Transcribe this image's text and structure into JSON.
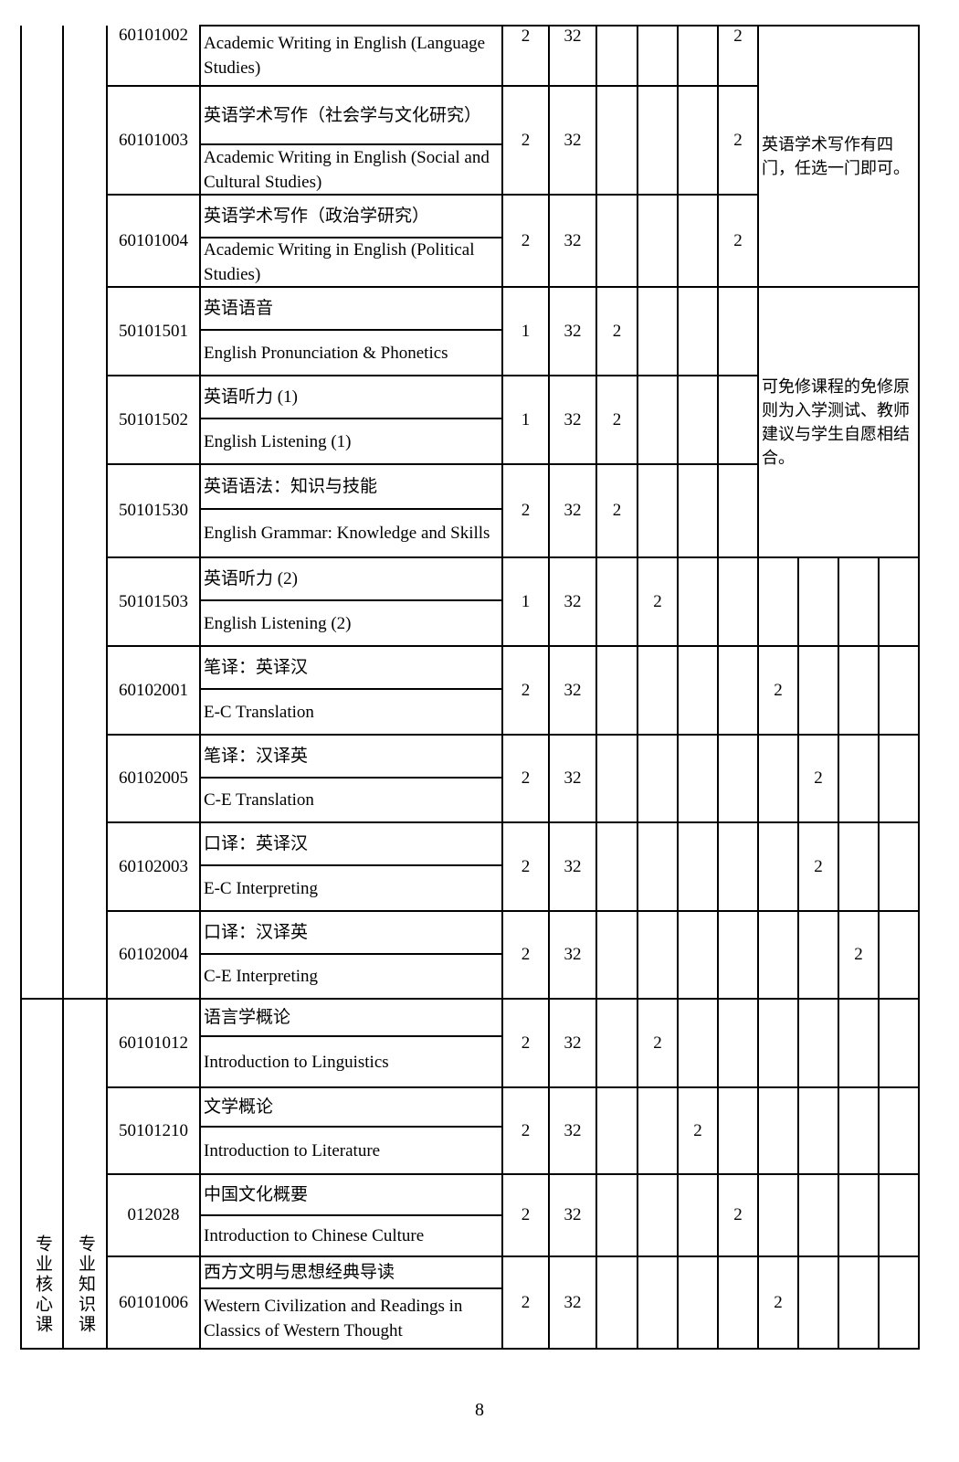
{
  "category": {
    "type": "专业核心课",
    "sub": "专业知识课"
  },
  "remarks": [
    "英语学术写作有四门，任选一门即可。",
    "可免修课程的免修原则为入学测试、教师建议与学生自愿相结合。"
  ],
  "courses": [
    {
      "code": "60101002",
      "cn": "",
      "en": "Academic Writing in English (Language Studies)",
      "credits": "2",
      "hours": "32",
      "sem": [
        "",
        "",
        "",
        "2",
        "",
        "",
        "",
        ""
      ]
    },
    {
      "code": "60101003",
      "cn": "英语学术写作（社会学与文化研究）",
      "en": "Academic Writing in English (Social and Cultural Studies)",
      "credits": "2",
      "hours": "32",
      "sem": [
        "",
        "",
        "",
        "2",
        "",
        "",
        "",
        ""
      ]
    },
    {
      "code": "60101004",
      "cn": "英语学术写作（政治学研究）",
      "en": "Academic Writing in English (Political Studies)",
      "credits": "2",
      "hours": "32",
      "sem": [
        "",
        "",
        "",
        "2",
        "",
        "",
        "",
        ""
      ]
    },
    {
      "code": "50101501",
      "cn": "英语语音",
      "en": "English Pronunciation & Phonetics",
      "credits": "1",
      "hours": "32",
      "sem": [
        "2",
        "",
        "",
        "",
        "",
        "",
        "",
        ""
      ]
    },
    {
      "code": "50101502",
      "cn": "英语听力 (1)",
      "en": "English Listening (1)",
      "credits": "1",
      "hours": "32",
      "sem": [
        "2",
        "",
        "",
        "",
        "",
        "",
        "",
        ""
      ]
    },
    {
      "code": "50101530",
      "cn": "英语语法：知识与技能",
      "en": "English Grammar: Knowledge and Skills",
      "credits": "2",
      "hours": "32",
      "sem": [
        "2",
        "",
        "",
        "",
        "",
        "",
        "",
        ""
      ]
    },
    {
      "code": "50101503",
      "cn": "英语听力 (2)",
      "en": "English Listening (2)",
      "credits": "1",
      "hours": "32",
      "sem": [
        "",
        "2",
        "",
        "",
        "",
        "",
        "",
        ""
      ]
    },
    {
      "code": "60102001",
      "cn": "笔译：英译汉",
      "en": "E-C Translation",
      "credits": "2",
      "hours": "32",
      "sem": [
        "",
        "",
        "",
        "",
        "2",
        "",
        "",
        ""
      ]
    },
    {
      "code": "60102005",
      "cn": "笔译：汉译英",
      "en": "C-E Translation",
      "credits": "2",
      "hours": "32",
      "sem": [
        "",
        "",
        "",
        "",
        "",
        "2",
        "",
        ""
      ]
    },
    {
      "code": "60102003",
      "cn": "口译：英译汉",
      "en": "E-C Interpreting",
      "credits": "2",
      "hours": "32",
      "sem": [
        "",
        "",
        "",
        "",
        "",
        "2",
        "",
        ""
      ]
    },
    {
      "code": "60102004",
      "cn": "口译：汉译英",
      "en": "C-E Interpreting",
      "credits": "2",
      "hours": "32",
      "sem": [
        "",
        "",
        "",
        "",
        "",
        "",
        "2",
        ""
      ]
    },
    {
      "code": "60101012",
      "cn": "语言学概论",
      "en": "Introduction to Linguistics",
      "credits": "2",
      "hours": "32",
      "sem": [
        "",
        "2",
        "",
        "",
        "",
        "",
        "",
        ""
      ]
    },
    {
      "code": "50101210",
      "cn": "文学概论",
      "en": "Introduction to Literature",
      "credits": "2",
      "hours": "32",
      "sem": [
        "",
        "",
        "2",
        "",
        "",
        "",
        "",
        ""
      ]
    },
    {
      "code": "012028",
      "cn": "中国文化概要",
      "en": "Introduction to Chinese Culture",
      "credits": "2",
      "hours": "32",
      "sem": [
        "",
        "",
        "",
        "2",
        "",
        "",
        "",
        ""
      ]
    },
    {
      "code": "60101006",
      "cn": "西方文明与思想经典导读",
      "en": "Western Civilization and Readings in Classics of Western Thought",
      "credits": "2",
      "hours": "32",
      "sem": [
        "",
        "",
        "",
        "",
        "2",
        "",
        "",
        ""
      ]
    }
  ],
  "page_number": "8"
}
